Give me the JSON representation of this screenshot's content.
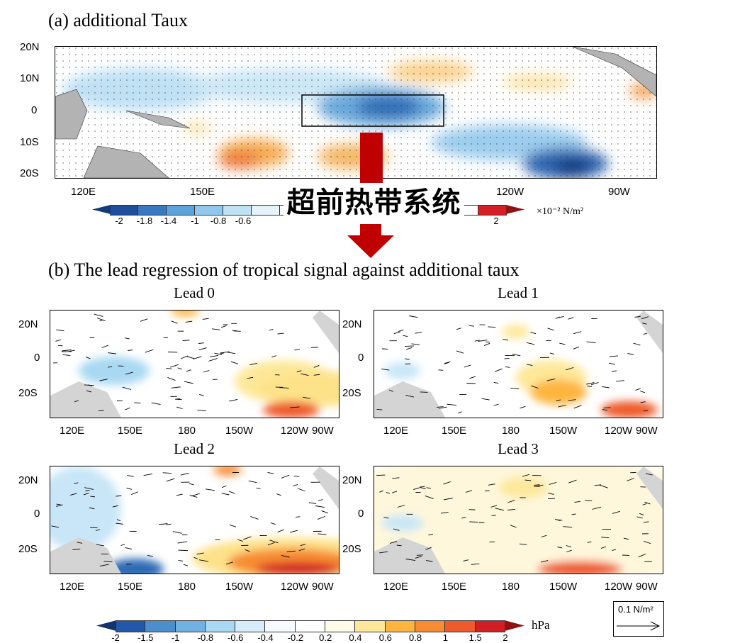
{
  "panel_a": {
    "title": "(a) additional Taux",
    "y_ticks": [
      "20N",
      "10N",
      "0",
      "10S",
      "20S"
    ],
    "x_ticks": [
      "120E",
      "150E",
      "120W",
      "90W"
    ],
    "colorbar": {
      "labels": [
        "-2",
        "-1.8",
        "-1.4",
        "-1",
        "-0.8",
        "-0.6",
        "2"
      ],
      "unit": "×10⁻² N/m²"
    }
  },
  "annotation": {
    "text": "超前热带系统",
    "color": "#c00000"
  },
  "panel_b": {
    "title": "(b) The lead regression of tropical signal against additional taux",
    "panels": [
      {
        "title": "Lead 0"
      },
      {
        "title": "Lead 1"
      },
      {
        "title": "Lead 2"
      },
      {
        "title": "Lead 3"
      }
    ],
    "y_ticks": [
      "20N",
      "0",
      "20S"
    ],
    "x_ticks": [
      "120E",
      "150E",
      "180",
      "150W",
      "120W",
      "90W"
    ],
    "colorbar": {
      "labels": [
        "-2",
        "-1.5",
        "-1",
        "-0.8",
        "-0.6",
        "-0.4",
        "-0.2",
        "0.2",
        "0.4",
        "0.6",
        "0.8",
        "1",
        "1.5",
        "2"
      ],
      "unit": "hPa"
    },
    "reference_vector": "0.1 N/m²"
  },
  "colors": {
    "cb_a": [
      "#1f4e9a",
      "#3a78bf",
      "#5ca3d9",
      "#8fc8ec",
      "#c0e2f5",
      "#e6f3fb"
    ],
    "cb_b": [
      "#2358a8",
      "#4a8fcc",
      "#6fb1e0",
      "#a8d8f2",
      "#d6ecf8",
      "#f7fbff",
      "#ffffff",
      "#fffbe8",
      "#fde89a",
      "#fdb53f",
      "#f78c32",
      "#ee5a2b",
      "#d21f26"
    ]
  }
}
